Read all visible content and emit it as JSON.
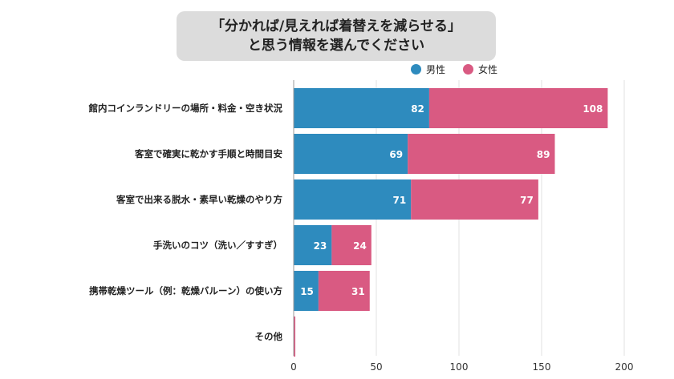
{
  "colors": {
    "male": "#2e8bbe",
    "female": "#d95a82",
    "title_bg": "#dcdcdc",
    "grid": "#e2e2e2"
  },
  "chart_data": {
    "type": "bar",
    "orientation": "horizontal",
    "stacked": true,
    "title_lines": [
      "「分かれば/見えれば着替えを減らせる」",
      "と思う情報を選んでください"
    ],
    "categories": [
      "館内コインランドリーの場所・料金・空き状況",
      "客室で確実に乾かす手順と時間目安",
      "客室で出来る脱水・素早い乾燥のやり方",
      "手洗いのコツ（洗い／すすぎ）",
      "携帯乾燥ツール（例：乾燥バルーン）の使い方",
      "その他"
    ],
    "series": [
      {
        "name": "男性",
        "values": [
          82,
          69,
          71,
          23,
          15,
          0
        ]
      },
      {
        "name": "女性",
        "values": [
          108,
          89,
          77,
          24,
          31,
          1
        ]
      }
    ],
    "xlim": [
      0,
      200
    ],
    "xticks": [
      0,
      50,
      100,
      150,
      200
    ],
    "grid": true,
    "legend_position": "top-right"
  }
}
